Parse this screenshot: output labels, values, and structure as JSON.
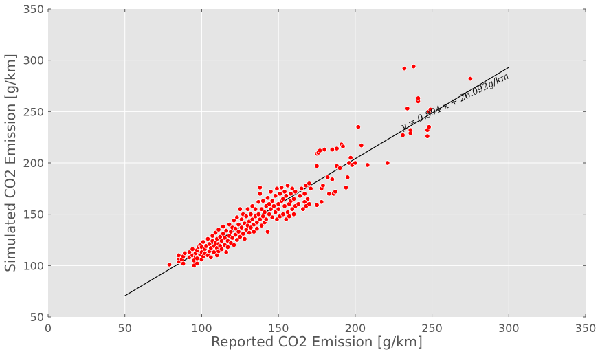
{
  "chart_data": {
    "type": "scatter",
    "xlabel": "Reported CO2 Emission [g/km]",
    "ylabel": "Simulated CO2 Emission [g/km]",
    "xlim": [
      0,
      350
    ],
    "ylim": [
      50,
      350
    ],
    "xticks": [
      0,
      50,
      100,
      150,
      200,
      250,
      300,
      350
    ],
    "yticks": [
      50,
      100,
      150,
      200,
      250,
      300,
      350
    ],
    "grid": true,
    "background": "#e5e5e5",
    "grid_color": "#ffffff",
    "point_color": "#ff0000",
    "series": [
      {
        "points": [
          [
            79,
            101
          ],
          [
            85,
            104
          ],
          [
            85,
            107
          ],
          [
            85,
            110
          ],
          [
            87,
            106
          ],
          [
            88,
            102
          ],
          [
            88,
            109
          ],
          [
            89,
            112
          ],
          [
            92,
            108
          ],
          [
            92,
            113
          ],
          [
            94,
            110
          ],
          [
            94,
            116
          ],
          [
            95,
            100
          ],
          [
            95,
            105
          ],
          [
            96,
            109
          ],
          [
            96,
            112
          ],
          [
            97,
            102
          ],
          [
            97,
            107
          ],
          [
            97,
            115
          ],
          [
            98,
            118
          ],
          [
            99,
            111
          ],
          [
            99,
            120
          ],
          [
            100,
            106
          ],
          [
            100,
            113
          ],
          [
            100,
            118
          ],
          [
            101,
            109
          ],
          [
            101,
            123
          ],
          [
            102,
            116
          ],
          [
            102,
            112
          ],
          [
            103,
            119
          ],
          [
            104,
            110
          ],
          [
            104,
            126
          ],
          [
            105,
            114
          ],
          [
            105,
            121
          ],
          [
            106,
            108
          ],
          [
            106,
            117
          ],
          [
            107,
            124
          ],
          [
            107,
            129
          ],
          [
            108,
            113
          ],
          [
            108,
            119
          ],
          [
            109,
            122
          ],
          [
            109,
            132
          ],
          [
            110,
            110
          ],
          [
            110,
            117
          ],
          [
            110,
            126
          ],
          [
            111,
            114
          ],
          [
            111,
            121
          ],
          [
            111,
            135
          ],
          [
            112,
            119
          ],
          [
            112,
            128
          ],
          [
            113,
            124
          ],
          [
            113,
            116
          ],
          [
            114,
            131
          ],
          [
            114,
            138
          ],
          [
            115,
            120
          ],
          [
            115,
            127
          ],
          [
            116,
            113
          ],
          [
            116,
            134
          ],
          [
            117,
            124
          ],
          [
            117,
            118
          ],
          [
            118,
            129
          ],
          [
            118,
            140
          ],
          [
            119,
            122
          ],
          [
            119,
            133
          ],
          [
            120,
            127
          ],
          [
            120,
            137
          ],
          [
            121,
            120
          ],
          [
            121,
            144
          ],
          [
            122,
            130
          ],
          [
            122,
            136
          ],
          [
            123,
            125
          ],
          [
            123,
            147
          ],
          [
            124,
            133
          ],
          [
            124,
            140
          ],
          [
            125,
            128
          ],
          [
            125,
            155
          ],
          [
            126,
            137
          ],
          [
            126,
            145
          ],
          [
            127,
            131
          ],
          [
            127,
            150
          ],
          [
            128,
            126
          ],
          [
            128,
            141
          ],
          [
            129,
            135
          ],
          [
            129,
            148
          ],
          [
            130,
            139
          ],
          [
            130,
            155
          ],
          [
            131,
            143
          ],
          [
            131,
            132
          ],
          [
            132,
            150
          ],
          [
            132,
            137
          ],
          [
            133,
            145
          ],
          [
            133,
            158
          ],
          [
            134,
            140
          ],
          [
            134,
            133
          ],
          [
            135,
            148
          ],
          [
            135,
            155
          ],
          [
            136,
            142
          ],
          [
            136,
            136
          ],
          [
            137,
            150
          ],
          [
            137,
            162
          ],
          [
            138,
            145
          ],
          [
            138,
            170
          ],
          [
            138,
            176
          ],
          [
            139,
            139
          ],
          [
            139,
            155
          ],
          [
            140,
            148
          ],
          [
            140,
            163
          ],
          [
            141,
            142
          ],
          [
            141,
            152
          ],
          [
            142,
            158
          ],
          [
            142,
            145
          ],
          [
            143,
            133
          ],
          [
            143,
            166
          ],
          [
            144,
            150
          ],
          [
            144,
            160
          ],
          [
            145,
            155
          ],
          [
            145,
            172
          ],
          [
            146,
            147
          ],
          [
            146,
            163
          ],
          [
            147,
            158
          ],
          [
            148,
            168
          ],
          [
            148,
            152
          ],
          [
            149,
            175
          ],
          [
            149,
            145
          ],
          [
            150,
            160
          ],
          [
            150,
            155
          ],
          [
            151,
            170
          ],
          [
            151,
            148
          ],
          [
            152,
            163
          ],
          [
            152,
            176
          ],
          [
            153,
            150
          ],
          [
            153,
            165
          ],
          [
            154,
            158
          ],
          [
            154,
            172
          ],
          [
            155,
            145
          ],
          [
            155,
            168
          ],
          [
            156,
            152
          ],
          [
            156,
            178
          ],
          [
            157,
            160
          ],
          [
            157,
            148
          ],
          [
            158,
            170
          ],
          [
            158,
            163
          ],
          [
            159,
            155
          ],
          [
            159,
            175
          ],
          [
            160,
            150
          ],
          [
            160,
            165
          ],
          [
            161,
            158
          ],
          [
            161,
            172
          ],
          [
            163,
            160
          ],
          [
            164,
            168
          ],
          [
            165,
            175
          ],
          [
            166,
            155
          ],
          [
            167,
            170
          ],
          [
            167,
            162
          ],
          [
            168,
            178
          ],
          [
            168,
            158
          ],
          [
            169,
            165
          ],
          [
            170,
            180
          ],
          [
            170,
            160
          ],
          [
            171,
            175
          ],
          [
            175,
            159
          ],
          [
            175,
            197
          ],
          [
            175,
            209
          ],
          [
            176,
            210
          ],
          [
            177,
            212
          ],
          [
            178,
            162
          ],
          [
            178,
            175
          ],
          [
            179,
            178
          ],
          [
            180,
            213
          ],
          [
            182,
            186
          ],
          [
            183,
            170
          ],
          [
            185,
            213
          ],
          [
            185,
            184
          ],
          [
            186,
            170
          ],
          [
            187,
            172
          ],
          [
            188,
            214
          ],
          [
            188,
            197
          ],
          [
            190,
            195
          ],
          [
            191,
            218
          ],
          [
            192,
            216
          ],
          [
            194,
            176
          ],
          [
            195,
            186
          ],
          [
            196,
            200
          ],
          [
            197,
            205
          ],
          [
            198,
            198
          ],
          [
            200,
            200
          ],
          [
            202,
            235
          ],
          [
            204,
            217
          ],
          [
            208,
            198
          ],
          [
            221,
            200
          ],
          [
            231,
            227
          ],
          [
            232,
            292
          ],
          [
            234,
            253
          ],
          [
            236,
            232
          ],
          [
            236,
            229
          ],
          [
            238,
            294
          ],
          [
            241,
            260
          ],
          [
            241,
            263
          ],
          [
            247,
            226
          ],
          [
            247,
            232
          ],
          [
            248,
            235
          ],
          [
            248,
            250
          ],
          [
            249,
            252
          ],
          [
            275,
            282
          ]
        ]
      }
    ],
    "fit_line": {
      "slope": 0.89,
      "intercept": 26.09,
      "x_range": [
        50,
        300
      ]
    },
    "annotation": {
      "text": "y = 0.894 x + 26.092g/km",
      "x": 231,
      "y": 232,
      "rotation_deg": -26
    }
  }
}
